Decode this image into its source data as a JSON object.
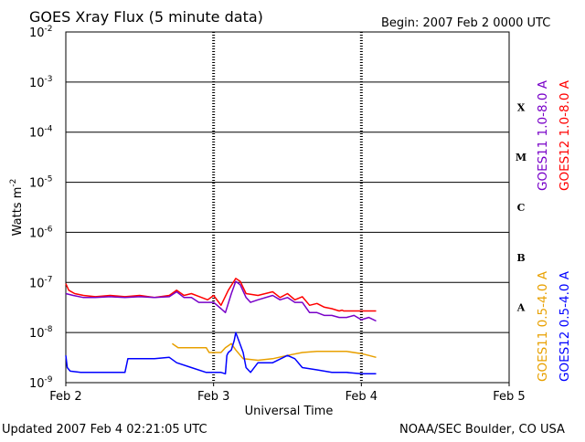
{
  "chart_data": {
    "type": "line",
    "title": "GOES Xray Flux (5 minute data)",
    "begin_label": "Begin:  2007 Feb 2 0000 UTC",
    "xlabel": "Universal Time",
    "ylabel_base": "Watts m",
    "ylabel_exp": "-2",
    "y_scale": "log",
    "ylim": [
      1e-09,
      0.01
    ],
    "y_ticks": [
      {
        "base": "10",
        "exp": "-2",
        "value": 0.01
      },
      {
        "base": "10",
        "exp": "-3",
        "value": 0.001
      },
      {
        "base": "10",
        "exp": "-4",
        "value": 0.0001
      },
      {
        "base": "10",
        "exp": "-5",
        "value": 1e-05
      },
      {
        "base": "10",
        "exp": "-6",
        "value": 1e-06
      },
      {
        "base": "10",
        "exp": "-7",
        "value": 1e-07
      },
      {
        "base": "10",
        "exp": "-8",
        "value": 1e-08
      },
      {
        "base": "10",
        "exp": "-9",
        "value": 1e-09
      }
    ],
    "x_range_days": [
      0,
      3
    ],
    "x_ticks": [
      {
        "label": "Feb 2",
        "day": 0
      },
      {
        "label": "Feb 3",
        "day": 1
      },
      {
        "label": "Feb 4",
        "day": 2
      },
      {
        "label": "Feb 5",
        "day": 3
      }
    ],
    "flare_classes": [
      {
        "label": "X",
        "lower": 0.0001,
        "upper": 0.001
      },
      {
        "label": "M",
        "lower": 1e-05,
        "upper": 0.0001
      },
      {
        "label": "C",
        "lower": 1e-06,
        "upper": 1e-05
      },
      {
        "label": "B",
        "lower": 1e-07,
        "upper": 1e-06
      },
      {
        "label": "A",
        "lower": 1e-08,
        "upper": 1e-07
      }
    ],
    "legend": [
      {
        "label": "GOES11 0.5-4.0 A",
        "color": "#e8a000"
      },
      {
        "label": "GOES12 0.5-4.0 A",
        "color": "#0000ff"
      },
      {
        "label": "GOES11 1.0-8.0 A",
        "color": "#7800c8"
      },
      {
        "label": "GOES12 1.0-8.0 A",
        "color": "#ff0000"
      }
    ],
    "series": [
      {
        "name": "GOES12 1.0-8.0 A",
        "color": "#ff0000",
        "points": [
          [
            0.0,
            9.5e-08
          ],
          [
            0.02,
            7e-08
          ],
          [
            0.06,
            6e-08
          ],
          [
            0.12,
            5.5e-08
          ],
          [
            0.2,
            5.2e-08
          ],
          [
            0.3,
            5.5e-08
          ],
          [
            0.4,
            5.2e-08
          ],
          [
            0.5,
            5.5e-08
          ],
          [
            0.6,
            5e-08
          ],
          [
            0.7,
            5.5e-08
          ],
          [
            0.75,
            7e-08
          ],
          [
            0.8,
            5.5e-08
          ],
          [
            0.85,
            6e-08
          ],
          [
            0.92,
            5e-08
          ],
          [
            0.96,
            4.5e-08
          ],
          [
            1.0,
            5.5e-08
          ],
          [
            1.05,
            3.5e-08
          ],
          [
            1.1,
            7e-08
          ],
          [
            1.15,
            1.2e-07
          ],
          [
            1.18,
            1.05e-07
          ],
          [
            1.22,
            6e-08
          ],
          [
            1.3,
            5.5e-08
          ],
          [
            1.4,
            6.5e-08
          ],
          [
            1.45,
            5e-08
          ],
          [
            1.5,
            6e-08
          ],
          [
            1.55,
            4.5e-08
          ],
          [
            1.6,
            5.2e-08
          ],
          [
            1.65,
            3.5e-08
          ],
          [
            1.7,
            3.8e-08
          ],
          [
            1.75,
            3.2e-08
          ],
          [
            1.8,
            3e-08
          ],
          [
            1.85,
            2.7e-08
          ],
          [
            1.87,
            2.8e-08
          ],
          [
            1.88,
            2.7e-08
          ],
          [
            2.1,
            2.7e-08
          ]
        ]
      },
      {
        "name": "GOES11 1.0-8.0 A",
        "color": "#7800c8",
        "points": [
          [
            0.0,
            6e-08
          ],
          [
            0.05,
            5.5e-08
          ],
          [
            0.12,
            5e-08
          ],
          [
            0.2,
            5e-08
          ],
          [
            0.3,
            5.2e-08
          ],
          [
            0.4,
            5e-08
          ],
          [
            0.5,
            5.2e-08
          ],
          [
            0.6,
            5e-08
          ],
          [
            0.7,
            5.2e-08
          ],
          [
            0.75,
            6.5e-08
          ],
          [
            0.8,
            5e-08
          ],
          [
            0.85,
            5e-08
          ],
          [
            0.9,
            4e-08
          ],
          [
            0.96,
            4e-08
          ],
          [
            1.0,
            4e-08
          ],
          [
            1.05,
            3e-08
          ],
          [
            1.08,
            2.5e-08
          ],
          [
            1.12,
            6e-08
          ],
          [
            1.15,
            1.05e-07
          ],
          [
            1.18,
            9e-08
          ],
          [
            1.22,
            5e-08
          ],
          [
            1.25,
            4e-08
          ],
          [
            1.3,
            4.5e-08
          ],
          [
            1.4,
            5.5e-08
          ],
          [
            1.45,
            4.5e-08
          ],
          [
            1.5,
            5e-08
          ],
          [
            1.55,
            4e-08
          ],
          [
            1.6,
            4e-08
          ],
          [
            1.65,
            2.5e-08
          ],
          [
            1.7,
            2.5e-08
          ],
          [
            1.75,
            2.2e-08
          ],
          [
            1.8,
            2.2e-08
          ],
          [
            1.85,
            2e-08
          ],
          [
            1.9,
            2e-08
          ],
          [
            1.95,
            2.2e-08
          ],
          [
            2.0,
            1.8e-08
          ],
          [
            2.05,
            2e-08
          ],
          [
            2.1,
            1.7e-08
          ]
        ]
      },
      {
        "name": "GOES11 0.5-4.0 A",
        "color": "#e8a000",
        "points": [
          [
            0.72,
            6e-09
          ],
          [
            0.76,
            5e-09
          ],
          [
            0.85,
            5e-09
          ],
          [
            0.95,
            5e-09
          ],
          [
            0.97,
            4e-09
          ],
          [
            1.05,
            4e-09
          ],
          [
            1.08,
            5e-09
          ],
          [
            1.12,
            6e-09
          ],
          [
            1.15,
            4.5e-09
          ],
          [
            1.2,
            3e-09
          ],
          [
            1.3,
            2.8e-09
          ],
          [
            1.4,
            3e-09
          ],
          [
            1.5,
            3.5e-09
          ],
          [
            1.6,
            4e-09
          ],
          [
            1.7,
            4.2e-09
          ],
          [
            1.8,
            4.2e-09
          ],
          [
            1.9,
            4.2e-09
          ],
          [
            2.0,
            3.8e-09
          ],
          [
            2.05,
            3.5e-09
          ],
          [
            2.1,
            3.2e-09
          ]
        ]
      },
      {
        "name": "GOES12 0.5-4.0 A",
        "color": "#0000ff",
        "points": [
          [
            0.0,
            3.5e-09
          ],
          [
            0.01,
            2e-09
          ],
          [
            0.03,
            1.7e-09
          ],
          [
            0.1,
            1.6e-09
          ],
          [
            0.2,
            1.6e-09
          ],
          [
            0.4,
            1.6e-09
          ],
          [
            0.42,
            3e-09
          ],
          [
            0.6,
            3e-09
          ],
          [
            0.7,
            3.2e-09
          ],
          [
            0.75,
            2.5e-09
          ],
          [
            0.85,
            2e-09
          ],
          [
            0.95,
            1.6e-09
          ],
          [
            1.0,
            1.6e-09
          ],
          [
            1.05,
            1.6e-09
          ],
          [
            1.08,
            1.5e-09
          ],
          [
            1.09,
            3.5e-09
          ],
          [
            1.1,
            4e-09
          ],
          [
            1.12,
            4.5e-09
          ],
          [
            1.14,
            7e-09
          ],
          [
            1.15,
            1e-08
          ],
          [
            1.17,
            7e-09
          ],
          [
            1.2,
            4e-09
          ],
          [
            1.22,
            2e-09
          ],
          [
            1.25,
            1.6e-09
          ],
          [
            1.3,
            2.5e-09
          ],
          [
            1.4,
            2.5e-09
          ],
          [
            1.5,
            3.5e-09
          ],
          [
            1.55,
            3e-09
          ],
          [
            1.6,
            2e-09
          ],
          [
            1.7,
            1.8e-09
          ],
          [
            1.8,
            1.6e-09
          ],
          [
            1.9,
            1.6e-09
          ],
          [
            2.0,
            1.5e-09
          ],
          [
            2.1,
            1.5e-09
          ]
        ]
      }
    ]
  },
  "footer": {
    "updated": "Updated 2007 Feb  4 02:21:05 UTC",
    "source": "NOAA/SEC Boulder, CO USA"
  }
}
